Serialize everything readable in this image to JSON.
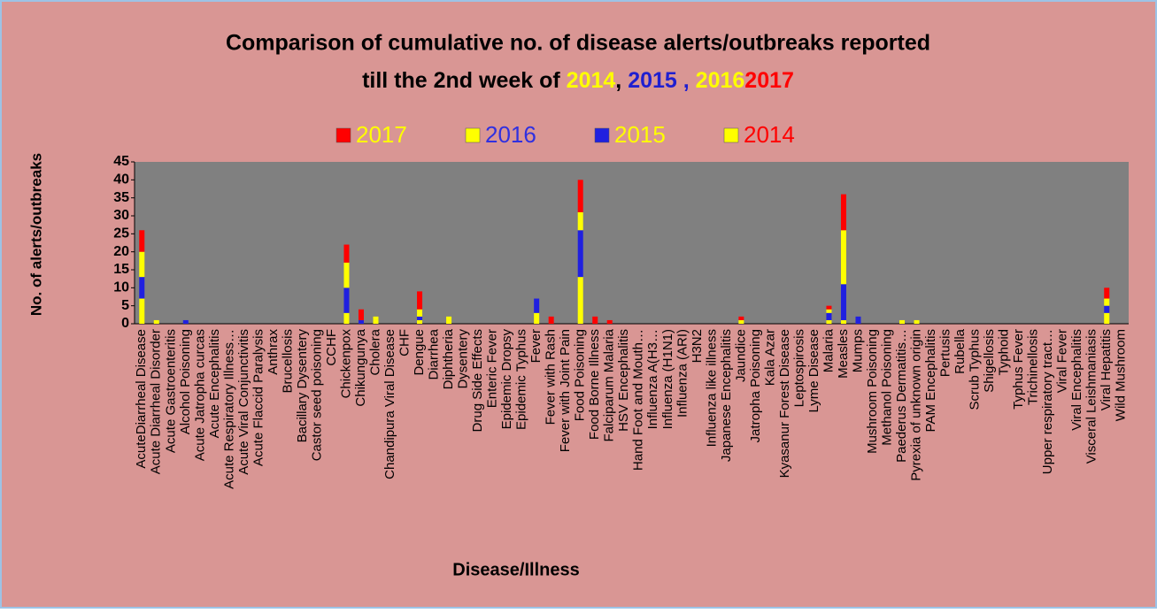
{
  "chart_data": {
    "type": "stacked_bar",
    "title": "Comparison of cumulative no. of disease alerts/outbreaks reported",
    "title_line2": [
      {
        "text": "till the 2nd week of ",
        "color": "#000000"
      },
      {
        "text": "2014",
        "color": "#ffff00"
      },
      {
        "text": ", ",
        "color": "#000000"
      },
      {
        "text": "2015",
        "color": "#1f1fd0"
      },
      {
        "text": " , ",
        "color": "#1f1fd0"
      },
      {
        "text": "2016",
        "color": "#ffff00"
      },
      {
        "text": "2017",
        "color": "#ff0000"
      }
    ],
    "x_label": "Disease/Illness",
    "y_label": "No. of alerts/outbreaks",
    "categories": [
      "AcuteDiarrheal Disease",
      "Acute Diarrheal Disorder",
      "Acute Gastroenteritis",
      "Alcohol Poisoning",
      "Acute Jatropha curcas",
      "Acute Encephalitis",
      "Acute Respiratory Illness…",
      "Acute Viral Conjunctivitis",
      "Acute Flaccid Paralysis",
      "Anthrax",
      "Brucellosis",
      "Bacillary Dysentery",
      "Castor seed poisoning",
      "CCHF",
      "Chickenpox",
      "Chikungunya",
      "Cholera",
      "Chandipura Viral Disease",
      "CHF",
      "Dengue",
      "Diarrhea",
      "Diphtheria",
      "Dysentery",
      "Drug Side Effects",
      "Enteric Fever",
      "Epidemic Dropsy",
      "Epidemic Typhus",
      "Fever",
      "Fever with Rash",
      "Fever with Joint Pain",
      "Food Poisoning",
      "Food Borne Illness",
      "Falciparum Malaria",
      "HSV Encephalitis",
      "Hand Foot and Mouth…",
      "Influenza A(H3…",
      "Influenza (H1N1)",
      "Influenza (ARI)",
      "H3N2",
      "Influenza like illness",
      "Japanese Encephalitis",
      "Jaundice",
      "Jatropha Poisoning",
      "Kala Azar",
      "Kyasanur Forest Disease",
      "Leptospirosis",
      "Lyme Disease",
      "Malaria",
      "Measles",
      "Mumps",
      "Mushroom Poisoning",
      "Methanol Poisoning",
      "Paederus Dermatitis…",
      "Pyrexia of unknown origin",
      "PAM Encephalitis",
      "Pertusis",
      "Rubella",
      "Scrub Typhus",
      "Shigellosis",
      "Typhoid",
      "Typhus Fever",
      "Trichinellosis",
      "Upper respiratory tract…",
      "Viral Fever",
      "Viral Encephalitis",
      "Visceral Leishmaniasis",
      "Viral Hepatitis",
      "Wild Mushroom"
    ],
    "series": [
      {
        "name": "2014",
        "color": "#ffff00",
        "label_color": "#ff0000",
        "values": [
          7,
          1,
          0,
          0,
          0,
          0,
          0,
          0,
          0,
          0,
          0,
          0,
          0,
          0,
          3,
          0,
          1,
          0,
          0,
          1,
          0,
          1,
          0,
          0,
          0,
          0,
          0,
          3,
          0,
          0,
          13,
          0,
          0,
          0,
          0,
          0,
          0,
          0,
          0,
          0,
          0,
          1,
          0,
          0,
          0,
          0,
          0,
          1,
          1,
          0,
          0,
          0,
          1,
          1,
          0,
          0,
          0,
          0,
          0,
          0,
          0,
          0,
          0,
          0,
          0,
          0,
          3,
          0
        ]
      },
      {
        "name": "2015",
        "color": "#2020e0",
        "label_color": "#ffff00",
        "values": [
          6,
          0,
          0,
          1,
          0,
          0,
          0,
          0,
          0,
          0,
          0,
          0,
          0,
          0,
          7,
          1,
          0,
          0,
          0,
          1,
          0,
          0,
          0,
          0,
          0,
          0,
          0,
          4,
          0,
          0,
          13,
          0,
          0,
          0,
          0,
          0,
          0,
          0,
          0,
          0,
          0,
          0,
          0,
          0,
          0,
          0,
          0,
          2,
          10,
          2,
          0,
          0,
          0,
          0,
          0,
          0,
          0,
          0,
          0,
          0,
          0,
          0,
          0,
          0,
          0,
          0,
          2,
          0
        ]
      },
      {
        "name": "2016",
        "color": "#ffff00",
        "label_color": "#3030e0",
        "values": [
          7,
          0,
          0,
          0,
          0,
          0,
          0,
          0,
          0,
          0,
          0,
          0,
          0,
          0,
          7,
          0,
          1,
          0,
          0,
          2,
          0,
          1,
          0,
          0,
          0,
          0,
          0,
          0,
          0,
          0,
          5,
          0,
          0,
          0,
          0,
          0,
          0,
          0,
          0,
          0,
          0,
          0,
          0,
          0,
          0,
          0,
          0,
          1,
          15,
          0,
          0,
          0,
          0,
          0,
          0,
          0,
          0,
          0,
          0,
          0,
          0,
          0,
          0,
          0,
          0,
          0,
          2,
          0
        ]
      },
      {
        "name": "2017",
        "color": "#ff0000",
        "label_color": "#ffff00",
        "values": [
          6,
          0,
          0,
          0,
          0,
          0,
          0,
          0,
          0,
          0,
          0,
          0,
          0,
          0,
          5,
          3,
          0,
          0,
          0,
          5,
          0,
          0,
          0,
          0,
          0,
          0,
          0,
          0,
          2,
          0,
          9,
          2,
          1,
          0,
          0,
          0,
          0,
          0,
          0,
          0,
          0,
          1,
          0,
          0,
          0,
          0,
          0,
          1,
          10,
          0,
          0,
          0,
          0,
          0,
          0,
          0,
          0,
          0,
          0,
          0,
          0,
          0,
          0,
          0,
          0,
          0,
          3,
          0
        ]
      }
    ],
    "legend_order": [
      3,
      2,
      1,
      0
    ],
    "ylim": [
      0,
      45
    ],
    "yticks": [
      0,
      5,
      10,
      15,
      20,
      25,
      30,
      35,
      40,
      45
    ]
  }
}
